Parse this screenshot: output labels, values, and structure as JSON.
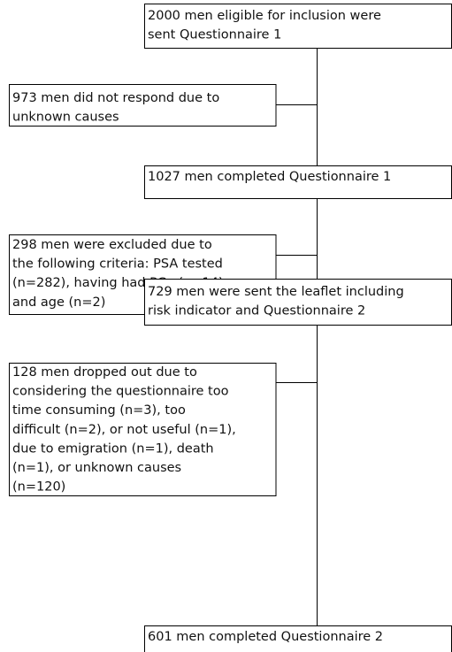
{
  "nodes": [
    {
      "lines": [
        "2000 men eligible for inclusion were",
        "sent Questionnaire 1"
      ]
    },
    {
      "lines": [
        "973 men did not respond due to",
        "unknown causes"
      ]
    },
    {
      "lines": [
        "1027 men completed Questionnaire 1"
      ]
    },
    {
      "lines": [
        "298 men were excluded due to",
        "the following criteria: PSA tested",
        "(n=282), having had PCa (n=14)",
        "and age (n=2)"
      ]
    },
    {
      "lines": [
        "729 men were sent the leaflet including",
        "risk indicator and Questionnaire 2"
      ]
    },
    {
      "lines": [
        "128 men dropped out due to",
        "considering the questionnaire too",
        "time consuming (n=3), too",
        "difficult (n=2), or not useful (n=1),",
        "due to emigration (n=1), death",
        "(n=1), or unknown causes",
        "(n=120)"
      ]
    },
    {
      "lines": [
        "601  men completed Questionnaire 2"
      ]
    }
  ]
}
